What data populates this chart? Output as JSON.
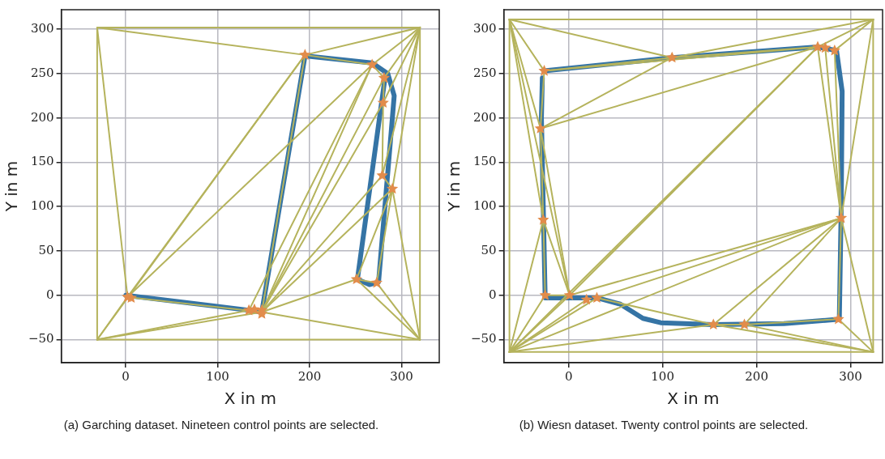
{
  "chart_data": [
    {
      "type": "line",
      "xlabel": "X in m",
      "ylabel": "Y in m",
      "annotations": [
        "(a) Garching dataset. Nineteen control points are selected."
      ],
      "xlim": [
        -70,
        341
      ],
      "ylim": [
        -76,
        322
      ],
      "xticks": [
        0,
        100,
        200,
        300
      ],
      "yticks": [
        {
          "value": -50,
          "label": "−50"
        },
        0,
        50,
        100,
        150,
        200,
        250,
        300
      ],
      "grid": true,
      "legend": false,
      "series": [
        {
          "color": "#b5b35c",
          "x": [
            -31,
            320
          ],
          "values": [
            302,
            302
          ]
        },
        {
          "color": "#b5b35c",
          "x": [
            -31,
            -31
          ],
          "values": [
            302,
            -50
          ]
        },
        {
          "color": "#b5b35c",
          "x": [
            -31,
            320
          ],
          "values": [
            -50,
            -50
          ]
        },
        {
          "color": "#b5b35c",
          "x": [
            320,
            320
          ],
          "values": [
            302,
            -50
          ]
        },
        {
          "color": "#b5b35c",
          "x": [
            -31,
            2
          ],
          "values": [
            302,
            -2
          ]
        },
        {
          "color": "#b5b35c",
          "x": [
            -31,
            195
          ],
          "values": [
            302,
            271
          ]
        },
        {
          "color": "#b5b35c",
          "x": [
            195,
            320
          ],
          "values": [
            271,
            302
          ]
        },
        {
          "color": "#b5b35c",
          "x": [
            268,
            320
          ],
          "values": [
            260,
            302
          ]
        },
        {
          "color": "#b5b35c",
          "x": [
            281,
            320
          ],
          "values": [
            245,
            302
          ]
        },
        {
          "color": "#b5b35c",
          "x": [
            280,
            320
          ],
          "values": [
            217,
            302
          ]
        },
        {
          "color": "#b5b35c",
          "x": [
            279,
            320
          ],
          "values": [
            135,
            302
          ]
        },
        {
          "color": "#b5b35c",
          "x": [
            290,
            320
          ],
          "values": [
            120,
            302
          ]
        },
        {
          "color": "#b5b35c",
          "x": [
            -31,
            2
          ],
          "values": [
            -50,
            -2
          ]
        },
        {
          "color": "#b5b35c",
          "x": [
            -31,
            195
          ],
          "values": [
            -50,
            271
          ]
        },
        {
          "color": "#b5b35c",
          "x": [
            -31,
            134
          ],
          "values": [
            -50,
            -17
          ]
        },
        {
          "color": "#b5b35c",
          "x": [
            -31,
            148
          ],
          "values": [
            -50,
            -19
          ]
        },
        {
          "color": "#b5b35c",
          "x": [
            2,
            195
          ],
          "values": [
            -2,
            271
          ]
        },
        {
          "color": "#b5b35c",
          "x": [
            2,
            268
          ],
          "values": [
            -2,
            260
          ]
        },
        {
          "color": "#b5b35c",
          "x": [
            2,
            148
          ],
          "values": [
            -2,
            -19
          ]
        },
        {
          "color": "#b5b35c",
          "x": [
            148,
            195
          ],
          "values": [
            -19,
            271
          ]
        },
        {
          "color": "#b5b35c",
          "x": [
            148,
            268
          ],
          "values": [
            -19,
            260
          ]
        },
        {
          "color": "#b5b35c",
          "x": [
            148,
            281
          ],
          "values": [
            -19,
            245
          ]
        },
        {
          "color": "#b5b35c",
          "x": [
            148,
            280
          ],
          "values": [
            -19,
            217
          ]
        },
        {
          "color": "#b5b35c",
          "x": [
            148,
            279
          ],
          "values": [
            -19,
            135
          ]
        },
        {
          "color": "#b5b35c",
          "x": [
            148,
            290
          ],
          "values": [
            -19,
            120
          ]
        },
        {
          "color": "#b5b35c",
          "x": [
            148,
            251
          ],
          "values": [
            -19,
            18
          ]
        },
        {
          "color": "#b5b35c",
          "x": [
            148,
            320
          ],
          "values": [
            -19,
            -50
          ]
        },
        {
          "color": "#b5b35c",
          "x": [
            134,
            268
          ],
          "values": [
            -17,
            260
          ]
        },
        {
          "color": "#b5b35c",
          "x": [
            195,
            268
          ],
          "values": [
            271,
            260
          ]
        },
        {
          "color": "#b5b35c",
          "x": [
            268,
            281
          ],
          "values": [
            260,
            245
          ]
        },
        {
          "color": "#b5b35c",
          "x": [
            281,
            280
          ],
          "values": [
            245,
            217
          ]
        },
        {
          "color": "#b5b35c",
          "x": [
            280,
            279
          ],
          "values": [
            217,
            135
          ]
        },
        {
          "color": "#b5b35c",
          "x": [
            279,
            290
          ],
          "values": [
            135,
            120
          ]
        },
        {
          "color": "#b5b35c",
          "x": [
            290,
            251
          ],
          "values": [
            120,
            18
          ]
        },
        {
          "color": "#b5b35c",
          "x": [
            290,
            273
          ],
          "values": [
            120,
            14
          ]
        },
        {
          "color": "#b5b35c",
          "x": [
            290,
            320
          ],
          "values": [
            120,
            -50
          ]
        },
        {
          "color": "#b5b35c",
          "x": [
            251,
            273
          ],
          "values": [
            18,
            14
          ]
        },
        {
          "color": "#b5b35c",
          "x": [
            251,
            320
          ],
          "values": [
            18,
            -50
          ]
        },
        {
          "color": "#b5b35c",
          "x": [
            273,
            320
          ],
          "values": [
            14,
            -50
          ]
        },
        {
          "color": "#3574a5",
          "x": [
            0,
            135,
            148,
            195,
            268,
            285,
            292,
            290,
            275,
            265,
            252,
            278,
            282
          ],
          "values": [
            0,
            -17,
            -19,
            270,
            262,
            250,
            225,
            200,
            15,
            12,
            18,
            215,
            245
          ]
        },
        {
          "type": "scatter",
          "color": "#e28c4b",
          "marker": "star",
          "x": [
            195,
            268,
            281,
            280,
            279,
            290,
            251,
            273,
            2,
            6,
            134,
            140,
            148,
            148
          ],
          "values": [
            271,
            260,
            245,
            217,
            135,
            120,
            18,
            14,
            -2,
            -3,
            -17,
            -16,
            -17,
            -21
          ]
        }
      ]
    },
    {
      "type": "line",
      "xlabel": "X in m",
      "ylabel": "Y in m",
      "annotations": [
        "(b) Wiesn dataset. Twenty control points are selected."
      ],
      "xlim": [
        -69,
        334
      ],
      "ylim": [
        -76,
        322
      ],
      "xticks": [
        0,
        100,
        200,
        300
      ],
      "yticks": [
        {
          "value": -50,
          "label": "−50"
        },
        0,
        50,
        100,
        150,
        200,
        250,
        300
      ],
      "grid": true,
      "legend": false,
      "series": [
        {
          "color": "#b5b35c",
          "x": [
            -63,
            324
          ],
          "values": [
            311,
            311
          ]
        },
        {
          "color": "#b5b35c",
          "x": [
            -63,
            -63
          ],
          "values": [
            311,
            -64
          ]
        },
        {
          "color": "#b5b35c",
          "x": [
            324,
            324
          ],
          "values": [
            311,
            -64
          ]
        },
        {
          "color": "#b5b35c",
          "x": [
            -63,
            324
          ],
          "values": [
            -64,
            -64
          ]
        },
        {
          "color": "#b5b35c",
          "x": [
            -63,
            -26
          ],
          "values": [
            311,
            253
          ]
        },
        {
          "color": "#b5b35c",
          "x": [
            -63,
            110
          ],
          "values": [
            311,
            268
          ]
        },
        {
          "color": "#b5b35c",
          "x": [
            -63,
            -30
          ],
          "values": [
            311,
            188
          ]
        },
        {
          "color": "#b5b35c",
          "x": [
            -63,
            -27
          ],
          "values": [
            311,
            85
          ]
        },
        {
          "color": "#b5b35c",
          "x": [
            -63,
            1
          ],
          "values": [
            311,
            0
          ]
        },
        {
          "color": "#b5b35c",
          "x": [
            324,
            265
          ],
          "values": [
            311,
            280
          ]
        },
        {
          "color": "#b5b35c",
          "x": [
            324,
            283
          ],
          "values": [
            311,
            276
          ]
        },
        {
          "color": "#b5b35c",
          "x": [
            324,
            110
          ],
          "values": [
            311,
            268
          ]
        },
        {
          "color": "#b5b35c",
          "x": [
            324,
            290
          ],
          "values": [
            311,
            87
          ]
        },
        {
          "color": "#b5b35c",
          "x": [
            -26,
            110
          ],
          "values": [
            253,
            268
          ]
        },
        {
          "color": "#b5b35c",
          "x": [
            110,
            265
          ],
          "values": [
            268,
            280
          ]
        },
        {
          "color": "#b5b35c",
          "x": [
            -26,
            265
          ],
          "values": [
            253,
            280
          ]
        },
        {
          "color": "#b5b35c",
          "x": [
            -30,
            110
          ],
          "values": [
            188,
            268
          ]
        },
        {
          "color": "#b5b35c",
          "x": [
            -30,
            265
          ],
          "values": [
            188,
            280
          ]
        },
        {
          "color": "#b5b35c",
          "x": [
            -30,
            -26
          ],
          "values": [
            188,
            253
          ]
        },
        {
          "color": "#b5b35c",
          "x": [
            -30,
            -27
          ],
          "values": [
            188,
            85
          ]
        },
        {
          "color": "#b5b35c",
          "x": [
            -30,
            1
          ],
          "values": [
            188,
            0
          ]
        },
        {
          "color": "#b5b35c",
          "x": [
            -27,
            -25
          ],
          "values": [
            85,
            0
          ]
        },
        {
          "color": "#b5b35c",
          "x": [
            -27,
            1
          ],
          "values": [
            85,
            0
          ]
        },
        {
          "color": "#b5b35c",
          "x": [
            -25,
            1
          ],
          "values": [
            0,
            0
          ]
        },
        {
          "color": "#b5b35c",
          "x": [
            -63,
            -25
          ],
          "values": [
            -64,
            0
          ]
        },
        {
          "color": "#b5b35c",
          "x": [
            -63,
            1
          ],
          "values": [
            -64,
            0
          ]
        },
        {
          "color": "#b5b35c",
          "x": [
            -63,
            -27
          ],
          "values": [
            -64,
            85
          ]
        },
        {
          "color": "#b5b35c",
          "x": [
            -63,
            19
          ],
          "values": [
            -64,
            -5
          ]
        },
        {
          "color": "#b5b35c",
          "x": [
            -63,
            30
          ],
          "values": [
            -64,
            -3
          ]
        },
        {
          "color": "#b5b35c",
          "x": [
            -63,
            154
          ],
          "values": [
            -64,
            -33
          ]
        },
        {
          "color": "#b5b35c",
          "x": [
            -63,
            290
          ],
          "values": [
            -64,
            87
          ]
        },
        {
          "color": "#b5b35c",
          "x": [
            -63,
            265
          ],
          "values": [
            -64,
            280
          ]
        },
        {
          "color": "#b5b35c",
          "x": [
            1,
            265
          ],
          "values": [
            0,
            280
          ]
        },
        {
          "color": "#b5b35c",
          "x": [
            1,
            290
          ],
          "values": [
            0,
            87
          ]
        },
        {
          "color": "#b5b35c",
          "x": [
            30,
            290
          ],
          "values": [
            -3,
            87
          ]
        },
        {
          "color": "#b5b35c",
          "x": [
            30,
            154
          ],
          "values": [
            -3,
            -33
          ]
        },
        {
          "color": "#b5b35c",
          "x": [
            154,
            290
          ],
          "values": [
            -33,
            87
          ]
        },
        {
          "color": "#b5b35c",
          "x": [
            187,
            290
          ],
          "values": [
            -33,
            87
          ]
        },
        {
          "color": "#b5b35c",
          "x": [
            154,
            187
          ],
          "values": [
            -33,
            -33
          ]
        },
        {
          "color": "#b5b35c",
          "x": [
            187,
            287
          ],
          "values": [
            -33,
            -27
          ]
        },
        {
          "color": "#b5b35c",
          "x": [
            287,
            290
          ],
          "values": [
            -27,
            87
          ]
        },
        {
          "color": "#b5b35c",
          "x": [
            287,
            324
          ],
          "values": [
            -27,
            -64
          ]
        },
        {
          "color": "#b5b35c",
          "x": [
            154,
            324
          ],
          "values": [
            -33,
            -64
          ]
        },
        {
          "color": "#b5b35c",
          "x": [
            187,
            324
          ],
          "values": [
            -33,
            -64
          ]
        },
        {
          "color": "#b5b35c",
          "x": [
            290,
            324
          ],
          "values": [
            87,
            -64
          ]
        },
        {
          "color": "#b5b35c",
          "x": [
            283,
            290
          ],
          "values": [
            276,
            87
          ]
        },
        {
          "color": "#b5b35c",
          "x": [
            273,
            290
          ],
          "values": [
            279,
            87
          ]
        },
        {
          "color": "#b5b35c",
          "x": [
            265,
            290
          ],
          "values": [
            280,
            87
          ]
        },
        {
          "color": "#3574a5",
          "x": [
            -26,
            110,
            265,
            285,
            291,
            290,
            288,
            229,
            154,
            98,
            79,
            55,
            31,
            -25,
            -29,
            -28
          ],
          "values": [
            253,
            268,
            280,
            276,
            230,
            100,
            -27,
            -32,
            -33,
            -31,
            -26,
            -10,
            -3,
            -3,
            200,
            245
          ]
        },
        {
          "type": "scatter",
          "color": "#e28c4b",
          "marker": "star",
          "x": [
            -26,
            110,
            265,
            273,
            283,
            -30,
            -27,
            290,
            -25,
            1,
            19,
            30,
            154,
            187,
            287
          ],
          "values": [
            253,
            268,
            280,
            279,
            276,
            188,
            85,
            87,
            0,
            0,
            -5,
            -3,
            -33,
            -33,
            -27
          ]
        }
      ]
    }
  ]
}
